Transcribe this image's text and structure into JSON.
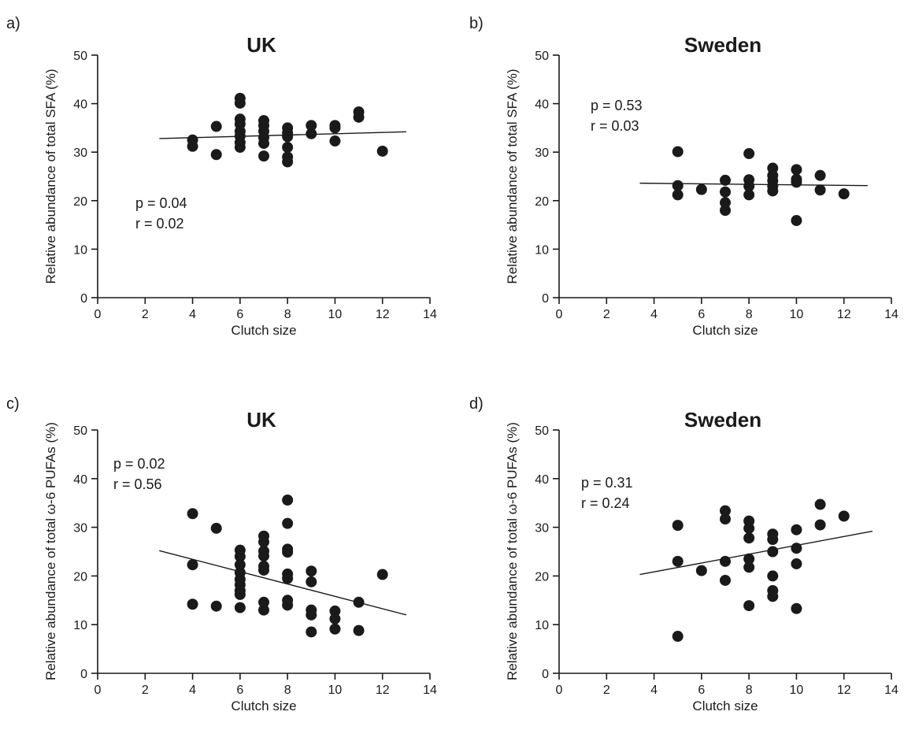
{
  "chart_data": [
    {
      "panel": "a)",
      "type": "scatter",
      "title": "UK",
      "xlabel": "Clutch size",
      "ylabel": "Relative abundance of total SFA (%)",
      "xlim": [
        0,
        14
      ],
      "ylim": [
        0,
        50
      ],
      "xticks": [
        0,
        2,
        4,
        6,
        8,
        10,
        12,
        14
      ],
      "yticks": [
        0,
        10,
        20,
        30,
        40,
        50
      ],
      "annotations": [
        "p = 0.04",
        "r = 0.02"
      ],
      "fit_line": {
        "x": [
          2.6,
          13.0
        ],
        "y": [
          32.8,
          34.2
        ]
      },
      "points": [
        [
          4,
          32.5
        ],
        [
          4,
          31.2
        ],
        [
          5,
          35.3
        ],
        [
          5,
          29.5
        ],
        [
          6,
          41.1
        ],
        [
          6,
          40.1
        ],
        [
          6,
          36.8
        ],
        [
          6,
          35.8
        ],
        [
          6,
          34.3
        ],
        [
          6,
          33.3
        ],
        [
          6,
          32.0
        ],
        [
          6,
          31.0
        ],
        [
          7,
          36.5
        ],
        [
          7,
          35.5
        ],
        [
          7,
          34.3
        ],
        [
          7,
          33.0
        ],
        [
          7,
          31.8
        ],
        [
          7,
          29.2
        ],
        [
          8,
          35.0
        ],
        [
          8,
          34.0
        ],
        [
          8,
          33.2
        ],
        [
          8,
          31.0
        ],
        [
          8,
          29.0
        ],
        [
          8,
          28.0
        ],
        [
          9,
          35.5
        ],
        [
          9,
          33.8
        ],
        [
          10,
          35.5
        ],
        [
          10,
          35.0
        ],
        [
          10,
          32.3
        ],
        [
          11,
          38.3
        ],
        [
          11,
          37.2
        ],
        [
          12,
          30.2
        ]
      ]
    },
    {
      "panel": "b)",
      "type": "scatter",
      "title": "Sweden",
      "xlabel": "Clutch size",
      "ylabel": "Relative abundance of total SFA (%)",
      "xlim": [
        0,
        14
      ],
      "ylim": [
        0,
        50
      ],
      "xticks": [
        0,
        2,
        4,
        6,
        8,
        10,
        12,
        14
      ],
      "yticks": [
        0,
        10,
        20,
        30,
        40,
        50
      ],
      "annotations": [
        "p = 0.53",
        "r = 0.03"
      ],
      "fit_line": {
        "x": [
          3.4,
          13.0
        ],
        "y": [
          23.6,
          23.1
        ]
      },
      "points": [
        [
          5,
          30.1
        ],
        [
          5,
          23.1
        ],
        [
          5,
          21.2
        ],
        [
          6,
          22.3
        ],
        [
          7,
          24.2
        ],
        [
          7,
          21.8
        ],
        [
          7,
          19.6
        ],
        [
          7,
          18.0
        ],
        [
          8,
          29.7
        ],
        [
          8,
          24.3
        ],
        [
          8,
          23.0
        ],
        [
          8,
          21.2
        ],
        [
          9,
          26.7
        ],
        [
          9,
          25.2
        ],
        [
          9,
          24.1
        ],
        [
          9,
          23.0
        ],
        [
          9,
          22.0
        ],
        [
          10,
          26.4
        ],
        [
          10,
          24.4
        ],
        [
          10,
          23.8
        ],
        [
          10,
          15.9
        ],
        [
          11,
          25.2
        ],
        [
          11,
          22.2
        ],
        [
          12,
          21.4
        ]
      ]
    },
    {
      "panel": "c)",
      "type": "scatter",
      "title": "UK",
      "xlabel": "Clutch size",
      "ylabel": "Relative abundance of total ω-6 PUFAs (%)",
      "xlim": [
        0,
        14
      ],
      "ylim": [
        0,
        50
      ],
      "xticks": [
        0,
        2,
        4,
        6,
        8,
        10,
        12,
        14
      ],
      "yticks": [
        0,
        10,
        20,
        30,
        40,
        50
      ],
      "annotations": [
        "p = 0.02",
        "r = 0.56"
      ],
      "fit_line": {
        "x": [
          2.6,
          13.0
        ],
        "y": [
          25.2,
          12.0
        ]
      },
      "points": [
        [
          4,
          32.8
        ],
        [
          4,
          22.3
        ],
        [
          4,
          14.2
        ],
        [
          5,
          29.8
        ],
        [
          5,
          13.8
        ],
        [
          6,
          25.3
        ],
        [
          6,
          24.0
        ],
        [
          6,
          22.3
        ],
        [
          6,
          20.7
        ],
        [
          6,
          19.3
        ],
        [
          6,
          18.2
        ],
        [
          6,
          17.0
        ],
        [
          6,
          16.2
        ],
        [
          6,
          13.5
        ],
        [
          7,
          28.2
        ],
        [
          7,
          27.0
        ],
        [
          7,
          25.1
        ],
        [
          7,
          24.1
        ],
        [
          7,
          22.0
        ],
        [
          7,
          21.2
        ],
        [
          7,
          14.6
        ],
        [
          7,
          13.0
        ],
        [
          8,
          35.6
        ],
        [
          8,
          30.8
        ],
        [
          8,
          25.5
        ],
        [
          8,
          24.9
        ],
        [
          8,
          20.4
        ],
        [
          8,
          19.5
        ],
        [
          8,
          15.0
        ],
        [
          8,
          14.0
        ],
        [
          9,
          21.0
        ],
        [
          9,
          18.8
        ],
        [
          9,
          13.0
        ],
        [
          9,
          12.0
        ],
        [
          9,
          8.5
        ],
        [
          10,
          12.8
        ],
        [
          10,
          11.2
        ],
        [
          10,
          9.1
        ],
        [
          11,
          14.6
        ],
        [
          11,
          8.8
        ],
        [
          12,
          20.3
        ]
      ]
    },
    {
      "panel": "d)",
      "type": "scatter",
      "title": "Sweden",
      "xlabel": "Clutch size",
      "ylabel": "Relative abundance of total ω-6 PUFAs (%)",
      "xlim": [
        0,
        14
      ],
      "ylim": [
        0,
        50
      ],
      "xticks": [
        0,
        2,
        4,
        6,
        8,
        10,
        12,
        14
      ],
      "yticks": [
        0,
        10,
        20,
        30,
        40,
        50
      ],
      "annotations": [
        "p = 0.31",
        "r = 0.24"
      ],
      "fit_line": {
        "x": [
          3.4,
          13.2
        ],
        "y": [
          20.3,
          29.2
        ]
      },
      "points": [
        [
          5,
          30.4
        ],
        [
          5,
          23.0
        ],
        [
          5,
          7.6
        ],
        [
          6,
          21.1
        ],
        [
          7,
          33.4
        ],
        [
          7,
          31.7
        ],
        [
          7,
          23.0
        ],
        [
          7,
          19.1
        ],
        [
          8,
          31.3
        ],
        [
          8,
          29.8
        ],
        [
          8,
          27.8
        ],
        [
          8,
          23.5
        ],
        [
          8,
          21.8
        ],
        [
          8,
          13.9
        ],
        [
          9,
          28.6
        ],
        [
          9,
          27.5
        ],
        [
          9,
          25.0
        ],
        [
          9,
          20.0
        ],
        [
          9,
          17.0
        ],
        [
          9,
          15.8
        ],
        [
          10,
          29.5
        ],
        [
          10,
          25.7
        ],
        [
          10,
          22.5
        ],
        [
          10,
          13.3
        ],
        [
          11,
          34.7
        ],
        [
          11,
          30.5
        ],
        [
          12,
          32.3
        ]
      ]
    }
  ]
}
